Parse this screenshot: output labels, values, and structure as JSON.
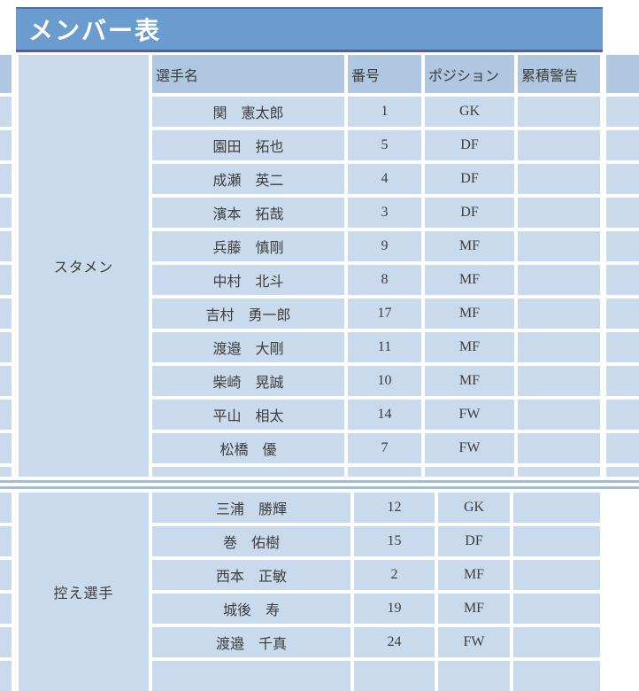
{
  "title": "メンバー表",
  "columns": {
    "name": "選手名",
    "number": "番号",
    "position": "ポジション",
    "warnings": "累積警告"
  },
  "sections": [
    {
      "label": "スタメン",
      "players": [
        {
          "name": "関　憲太郎",
          "number": "1",
          "position": "GK",
          "warnings": ""
        },
        {
          "name": "園田　拓也",
          "number": "5",
          "position": "DF",
          "warnings": ""
        },
        {
          "name": "成瀬　英二",
          "number": "4",
          "position": "DF",
          "warnings": ""
        },
        {
          "name": "濱本　拓哉",
          "number": "3",
          "position": "DF",
          "warnings": ""
        },
        {
          "name": "兵藤　慎剛",
          "number": "9",
          "position": "MF",
          "warnings": ""
        },
        {
          "name": "中村　北斗",
          "number": "8",
          "position": "MF",
          "warnings": ""
        },
        {
          "name": "吉村　勇一郎",
          "number": "17",
          "position": "MF",
          "warnings": ""
        },
        {
          "name": "渡邉　大剛",
          "number": "11",
          "position": "MF",
          "warnings": ""
        },
        {
          "name": "柴崎　晃誠",
          "number": "10",
          "position": "MF",
          "warnings": ""
        },
        {
          "name": "平山　相太",
          "number": "14",
          "position": "FW",
          "warnings": ""
        },
        {
          "name": "松橋　優",
          "number": "7",
          "position": "FW",
          "warnings": ""
        }
      ]
    },
    {
      "label": "控え選手",
      "players": [
        {
          "name": "三浦　勝輝",
          "number": "12",
          "position": "GK",
          "warnings": ""
        },
        {
          "name": "巻　佑樹",
          "number": "15",
          "position": "DF",
          "warnings": ""
        },
        {
          "name": "西本　正敏",
          "number": "2",
          "position": "MF",
          "warnings": ""
        },
        {
          "name": "城後　寿",
          "number": "19",
          "position": "MF",
          "warnings": ""
        },
        {
          "name": "渡邉　千真",
          "number": "24",
          "position": "FW",
          "warnings": ""
        }
      ]
    }
  ],
  "colors": {
    "title-bg": "#6b9ccf",
    "title-top-line": "#4a72a3",
    "title-bottom-line": "#575d97",
    "header-bg": "#b0c7e1",
    "cell-bg": "#c9daed",
    "line": "#a0bcd8"
  }
}
